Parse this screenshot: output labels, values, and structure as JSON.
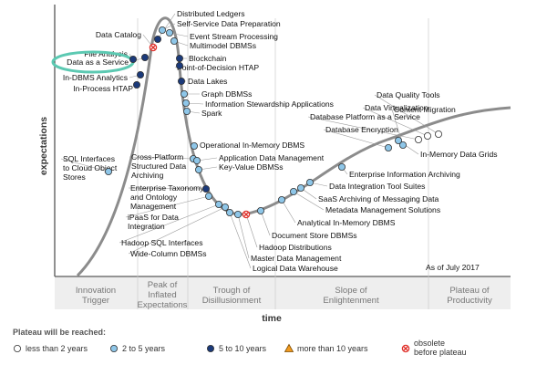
{
  "axis": {
    "y_title": "expectations",
    "x_title": "time"
  },
  "as_of": "As of July 2017",
  "phases": [
    {
      "lines": [
        "Innovation",
        "Trigger"
      ]
    },
    {
      "lines": [
        "Peak of",
        "Inflated",
        "Expectations"
      ]
    },
    {
      "lines": [
        "Trough of",
        "Disillusionment"
      ]
    },
    {
      "lines": [
        "Slope of",
        "Enlightenment"
      ]
    },
    {
      "lines": [
        "Plateau of",
        "Productivity"
      ]
    }
  ],
  "legend": {
    "title": "Plateau will be reached:",
    "items": [
      {
        "label": "less than 2 years",
        "marker": "white-circle",
        "color": "#ffffff"
      },
      {
        "label": "2 to 5 years",
        "marker": "light-blue-circle",
        "color": "#8ec6e8"
      },
      {
        "label": "5 to 10 years",
        "marker": "dark-blue-circle",
        "color": "#1b3a7a"
      },
      {
        "label": "more than 10 years",
        "marker": "orange-triangle",
        "color": "#f29a1f"
      },
      {
        "lines": [
          "obsolete",
          "before plateau"
        ],
        "marker": "red-x-circle",
        "color": "#e0312b"
      }
    ]
  },
  "highlight": {
    "technology": "Data as a Service",
    "color": "#5cc9b2"
  },
  "technologies": [
    {
      "name": "File Analysis",
      "marker": "dark-blue-circle"
    },
    {
      "name": "Data as a Service",
      "marker": "dark-blue-circle"
    },
    {
      "name": "In-DBMS Analytics",
      "marker": "dark-blue-circle"
    },
    {
      "name": "In-Process HTAP",
      "marker": "dark-blue-circle"
    },
    {
      "name": "SQL Interfaces to Cloud Object Stores",
      "marker": "light-blue-circle"
    },
    {
      "name": "Data Catalog",
      "marker": "red-x-circle"
    },
    {
      "name": "Distributed Ledgers",
      "marker": "dark-blue-circle"
    },
    {
      "name": "Self-Service Data Preparation",
      "marker": "light-blue-circle"
    },
    {
      "name": "Event Stream Processing",
      "marker": "light-blue-circle"
    },
    {
      "name": "Multimodel DBMSs",
      "marker": "light-blue-circle"
    },
    {
      "name": "Blockchain",
      "marker": "dark-blue-circle"
    },
    {
      "name": "Point-of-Decision HTAP",
      "marker": "dark-blue-circle"
    },
    {
      "name": "Data Lakes",
      "marker": "dark-blue-circle"
    },
    {
      "name": "Graph DBMSs",
      "marker": "light-blue-circle"
    },
    {
      "name": "Information Stewardship Applications",
      "marker": "light-blue-circle"
    },
    {
      "name": "Spark",
      "marker": "light-blue-circle"
    },
    {
      "name": "Cross-Platform Structured Data Archiving",
      "marker": "light-blue-circle"
    },
    {
      "name": "Operational In-Memory DBMS",
      "marker": "light-blue-circle"
    },
    {
      "name": "Application Data Management",
      "marker": "light-blue-circle"
    },
    {
      "name": "Key-Value DBMSs",
      "marker": "light-blue-circle"
    },
    {
      "name": "Enterprise Taxonomy and Ontology Management",
      "marker": "dark-blue-circle"
    },
    {
      "name": "iPaaS for Data Integration",
      "marker": "light-blue-circle"
    },
    {
      "name": "Hadoop SQL Interfaces",
      "marker": "light-blue-circle"
    },
    {
      "name": "Wide-Column DBMSs",
      "marker": "light-blue-circle"
    },
    {
      "name": "Document Store DBMSs",
      "marker": "light-blue-circle"
    },
    {
      "name": "Hadoop Distributions",
      "marker": "red-x-circle"
    },
    {
      "name": "Master Data Management",
      "marker": "light-blue-circle"
    },
    {
      "name": "Logical Data Warehouse",
      "marker": "light-blue-circle"
    },
    {
      "name": "Analytical In-Memory DBMS",
      "marker": "light-blue-circle"
    },
    {
      "name": "Metadata Management Solutions",
      "marker": "light-blue-circle"
    },
    {
      "name": "SaaS Archiving of Messaging Data",
      "marker": "light-blue-circle"
    },
    {
      "name": "Data Integration Tool Suites",
      "marker": "light-blue-circle"
    },
    {
      "name": "Enterprise Information Archiving",
      "marker": "light-blue-circle"
    },
    {
      "name": "In-Memory Data Grids",
      "marker": "light-blue-circle"
    },
    {
      "name": "Content Migration",
      "marker": "light-blue-circle"
    },
    {
      "name": "Database Encryption",
      "marker": "light-blue-circle"
    },
    {
      "name": "Database Platform as a Service",
      "marker": "white-circle"
    },
    {
      "name": "Data Virtualization",
      "marker": "white-circle"
    },
    {
      "name": "Data Quality Tools",
      "marker": "white-circle"
    }
  ]
}
